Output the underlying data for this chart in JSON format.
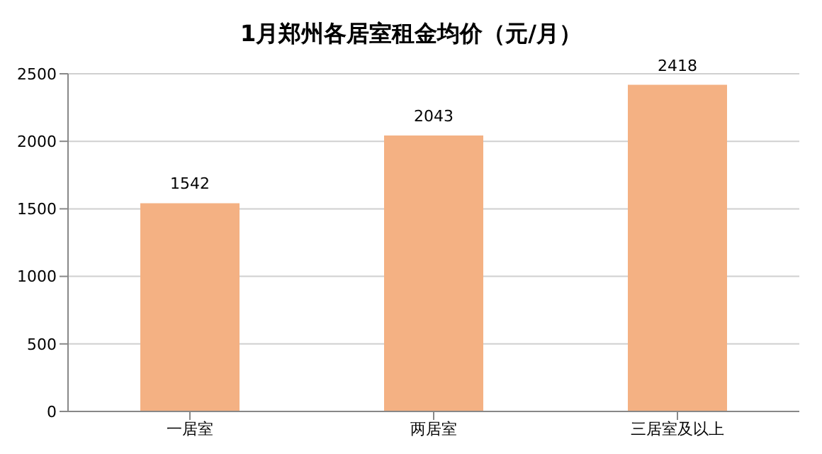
{
  "chart_data": {
    "type": "bar",
    "title": "1月郑州各居室租金均价（元/月）",
    "categories": [
      "一居室",
      "两居室",
      "三居室及以上"
    ],
    "values": [
      1542,
      2043,
      2418
    ],
    "color": "#f4b183",
    "ylim": [
      0,
      2500
    ],
    "yticks": [
      0,
      500,
      1000,
      1500,
      2000,
      2500
    ],
    "grid": "y",
    "data_labels": true
  }
}
